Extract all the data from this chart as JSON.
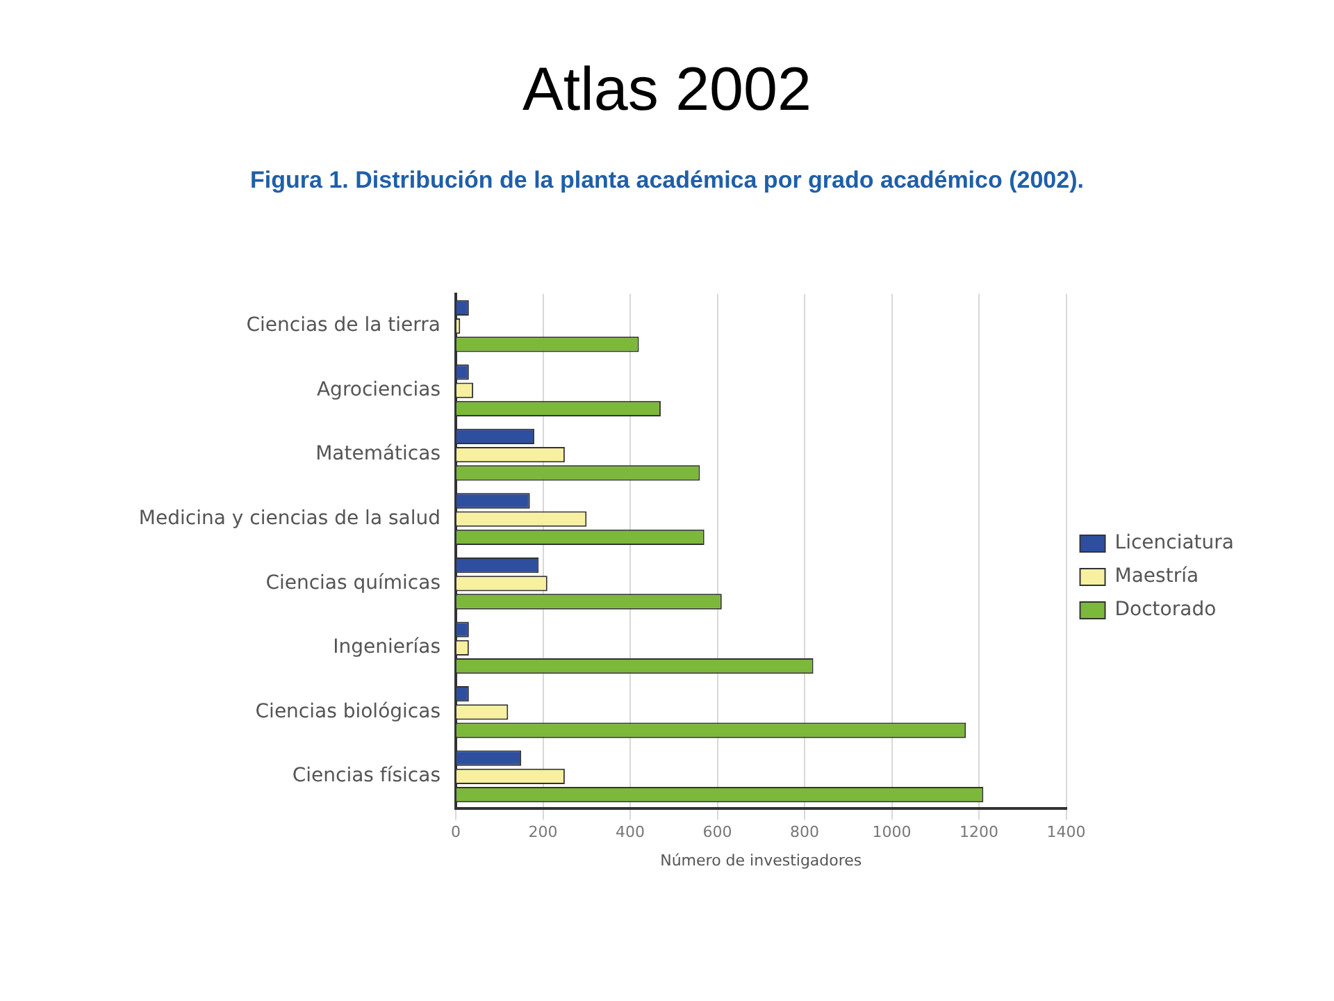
{
  "chart_data": {
    "type": "bar",
    "orientation": "horizontal",
    "title": "Atlas 2002",
    "subtitle": "Figura 1. Distribución de la planta académica por grado académico (2002).",
    "xlabel": "Número de investigadores",
    "categories": [
      "Ciencias de la tierra",
      "Agrociencias",
      "Matemáticas",
      "Medicina y ciencias de la salud",
      "Ciencias químicas",
      "Ingenierías",
      "Ciencias biológicas",
      "Ciencias físicas"
    ],
    "series": [
      {
        "name": "Licenciatura",
        "color": "#2e4f9e",
        "values": [
          30,
          30,
          180,
          170,
          190,
          30,
          30,
          150
        ]
      },
      {
        "name": "Maestría",
        "color": "#f6f0a0",
        "values": [
          10,
          40,
          250,
          300,
          210,
          30,
          120,
          250
        ]
      },
      {
        "name": "Doctorado",
        "color": "#7cb83a",
        "values": [
          420,
          470,
          560,
          570,
          610,
          820,
          1170,
          1210
        ]
      }
    ],
    "xlim": [
      0,
      1400
    ],
    "xticks": [
      0,
      200,
      400,
      600,
      800,
      1000,
      1200,
      1400
    ],
    "grid": "x",
    "legend": "right"
  }
}
